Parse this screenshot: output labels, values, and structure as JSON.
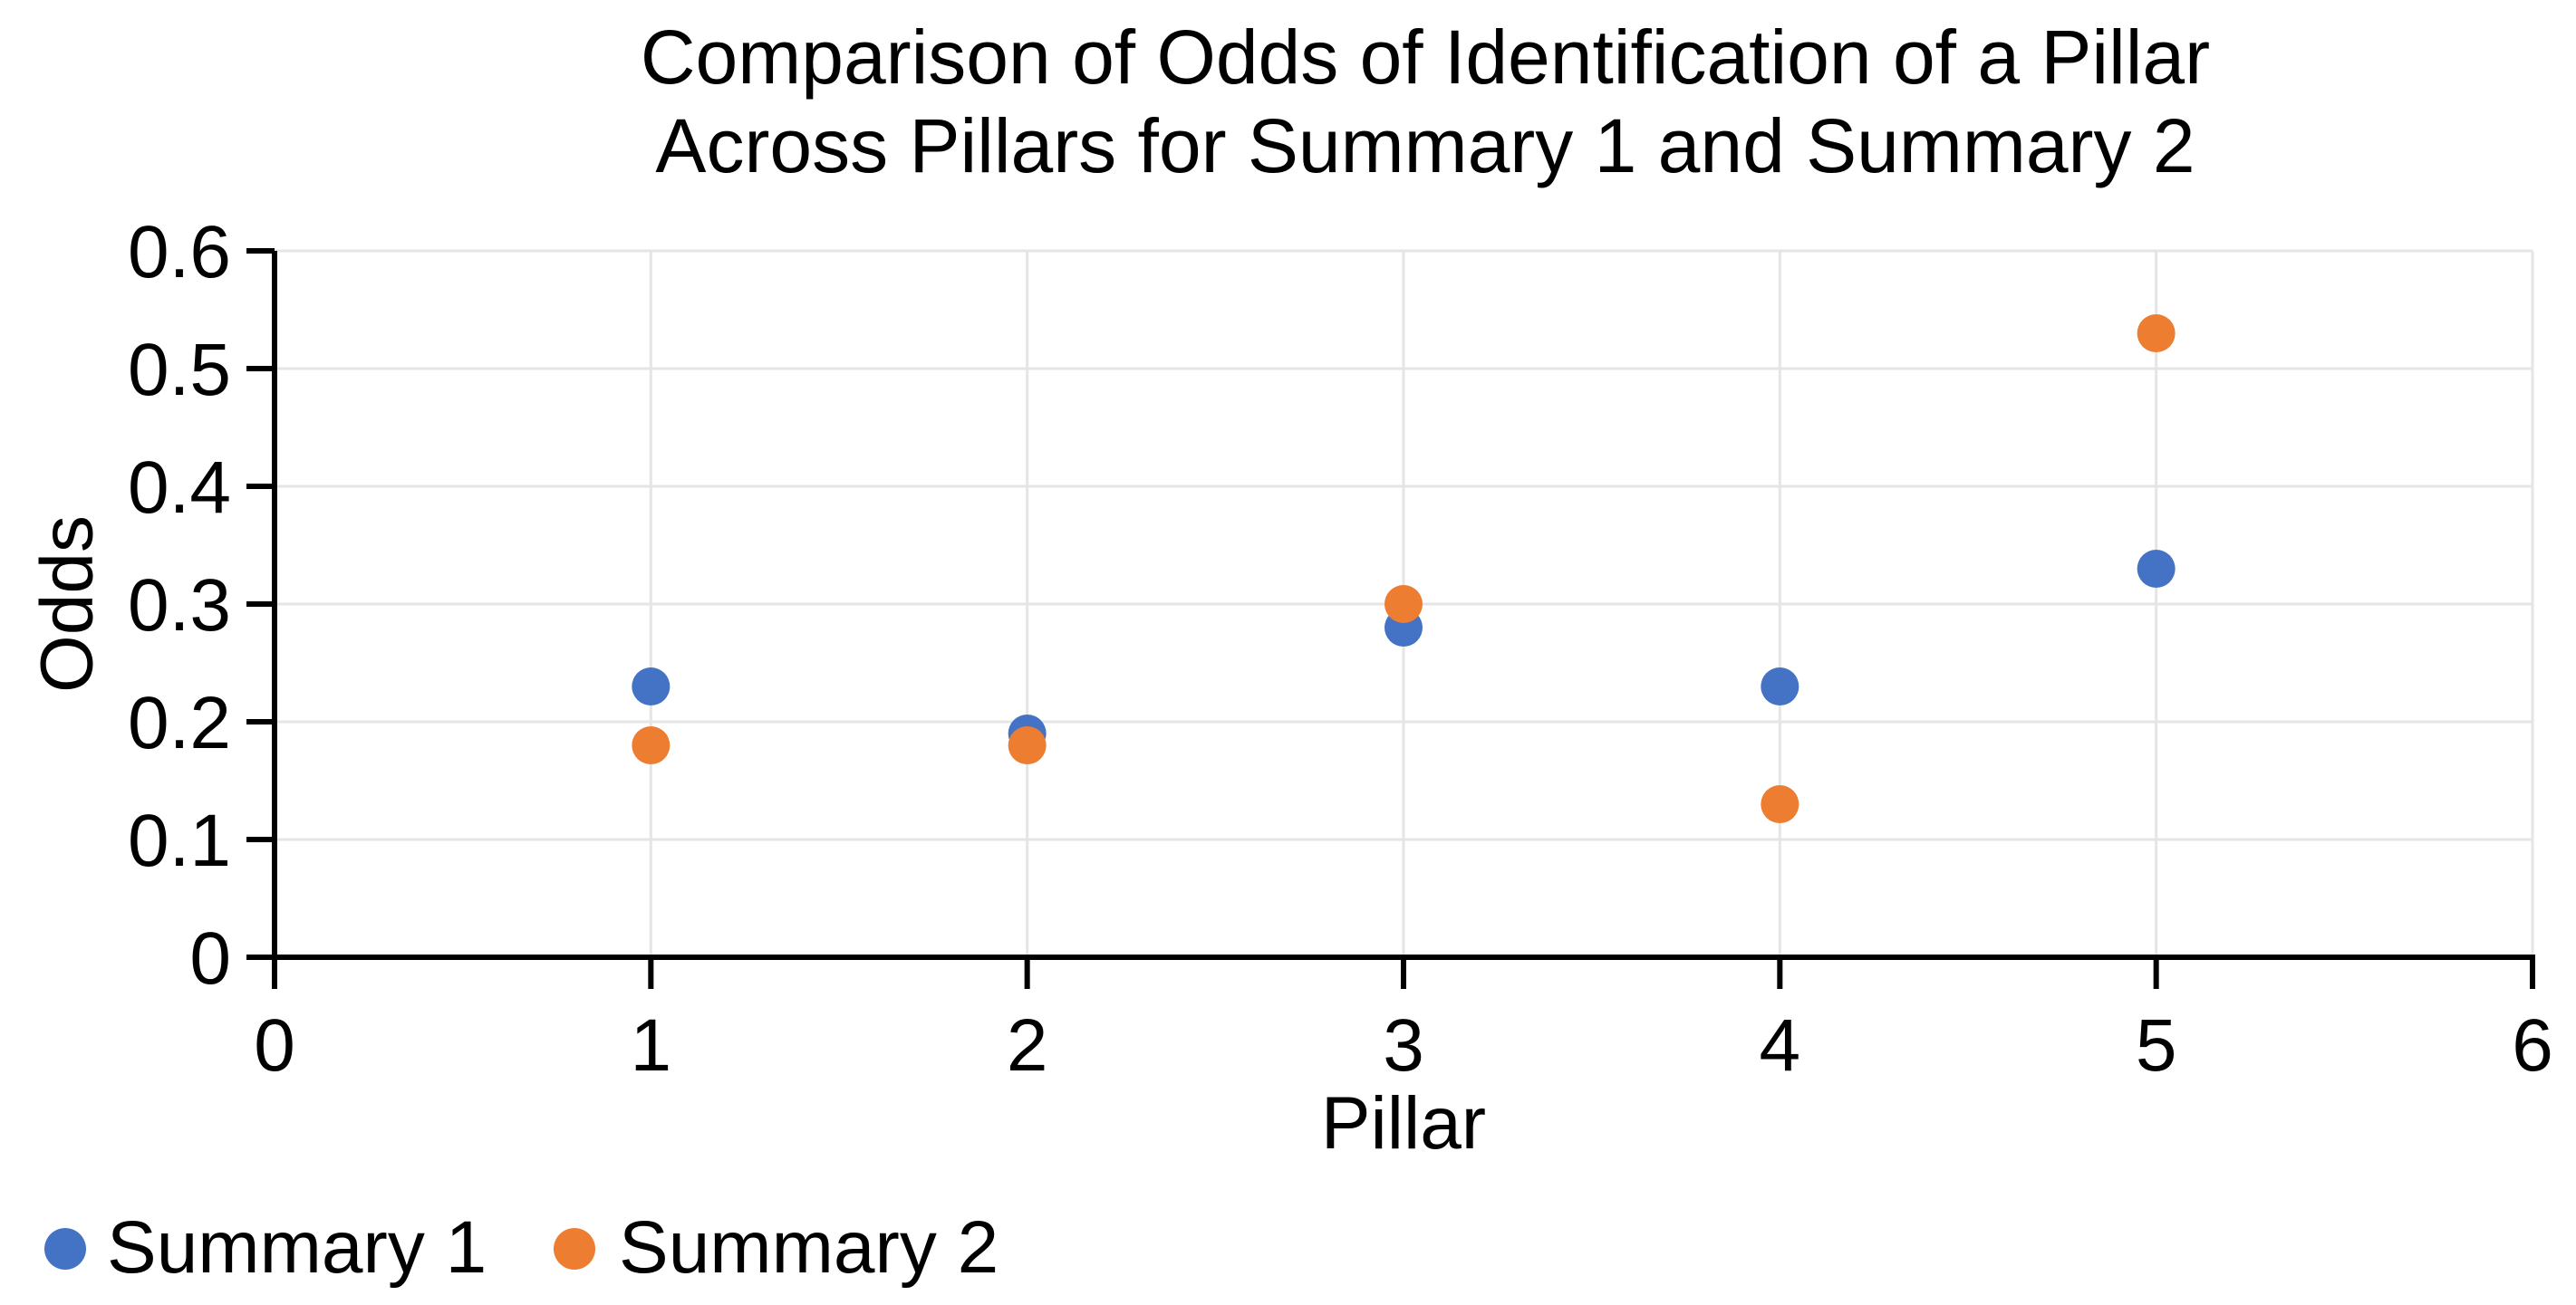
{
  "chart": {
    "background_color": "#ffffff",
    "grid_color": "#e5e5e5",
    "axis_color": "#000000",
    "text_color": "#000000"
  },
  "chart_data": {
    "type": "scatter",
    "title": "Comparison of Odds of Identification of a Pillar Across Pillars for Summary 1 and Summary 2",
    "title_lines": [
      "Comparison of Odds of Identification of a Pillar",
      "Across Pillars for Summary 1 and Summary 2"
    ],
    "xlabel": "Pillar",
    "ylabel": "Odds",
    "xlim": [
      0,
      6
    ],
    "ylim": [
      0,
      0.6
    ],
    "x_ticks": [
      0,
      1,
      2,
      3,
      4,
      5,
      6
    ],
    "x_tick_labels": [
      "0",
      "1",
      "2",
      "3",
      "4",
      "5",
      "6"
    ],
    "y_ticks": [
      0,
      0.1,
      0.2,
      0.3,
      0.4,
      0.5,
      0.6
    ],
    "y_tick_labels": [
      "0",
      "0.1",
      "0.2",
      "0.3",
      "0.4",
      "0.5",
      "0.6"
    ],
    "grid": true,
    "legend_position": "bottom-left",
    "series": [
      {
        "name": "Summary 1",
        "color": "#4472C4",
        "x": [
          1,
          2,
          3,
          4,
          5
        ],
        "y": [
          0.23,
          0.19,
          0.28,
          0.23,
          0.33
        ]
      },
      {
        "name": "Summary 2",
        "color": "#ED7D31",
        "x": [
          1,
          2,
          3,
          4,
          5
        ],
        "y": [
          0.18,
          0.18,
          0.3,
          0.13,
          0.53
        ]
      }
    ]
  }
}
